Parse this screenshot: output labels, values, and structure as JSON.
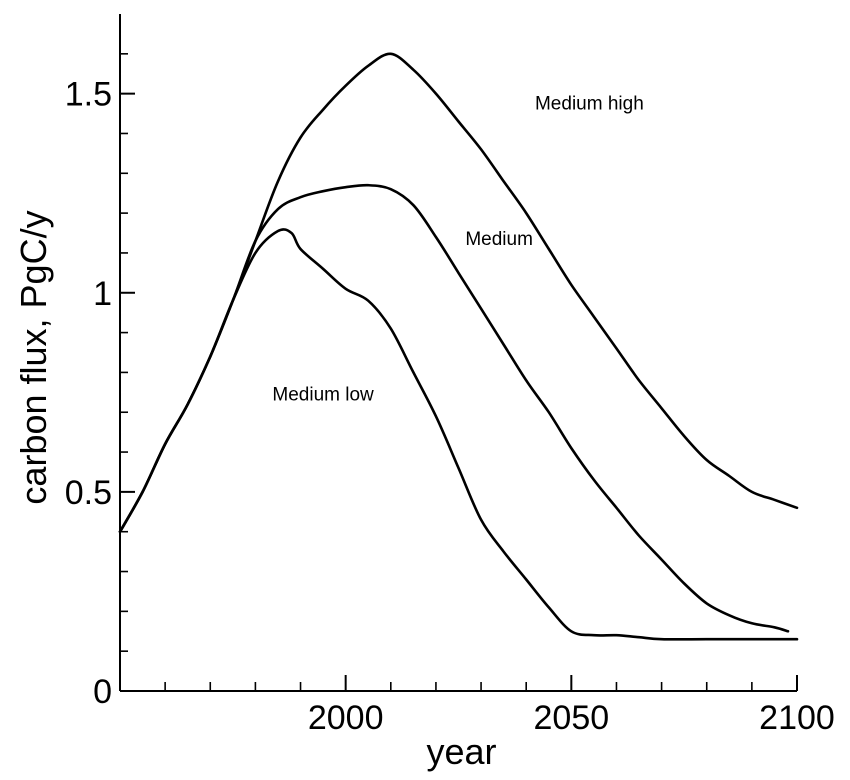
{
  "chart_data": {
    "type": "line",
    "title": "",
    "xlabel": "year",
    "ylabel": "carbon flux, PgC/y",
    "xlim": [
      1950,
      2100
    ],
    "ylim": [
      0,
      1.7
    ],
    "xticks": [
      2000,
      2050,
      2100
    ],
    "xtick_labels": [
      "2000",
      "2050",
      "2100"
    ],
    "yticks": [
      0,
      0.5,
      1,
      1.5
    ],
    "ytick_labels": [
      "0",
      "0.5",
      "1",
      "1.5"
    ],
    "grid": false,
    "legend": "none",
    "series": [
      {
        "name": "Medium high",
        "color": "#000000",
        "x": [
          1950,
          1955,
          1960,
          1965,
          1970,
          1975,
          1980,
          1985,
          1990,
          1995,
          2000,
          2005,
          2010,
          2015,
          2020,
          2025,
          2030,
          2035,
          2040,
          2045,
          2050,
          2055,
          2060,
          2065,
          2070,
          2075,
          2080,
          2085,
          2090,
          2095,
          2100
        ],
        "y": [
          0.4,
          0.5,
          0.62,
          0.72,
          0.84,
          0.98,
          1.13,
          1.28,
          1.39,
          1.46,
          1.52,
          1.57,
          1.6,
          1.56,
          1.5,
          1.43,
          1.36,
          1.28,
          1.2,
          1.11,
          1.02,
          0.94,
          0.86,
          0.78,
          0.71,
          0.64,
          0.58,
          0.54,
          0.5,
          0.48,
          0.46
        ]
      },
      {
        "name": "Medium",
        "color": "#000000",
        "x": [
          1950,
          1955,
          1960,
          1965,
          1970,
          1975,
          1980,
          1985,
          1990,
          1995,
          2000,
          2005,
          2010,
          2015,
          2020,
          2025,
          2030,
          2035,
          2040,
          2045,
          2050,
          2055,
          2060,
          2065,
          2070,
          2075,
          2080,
          2085,
          2090,
          2095,
          2098
        ],
        "y": [
          0.4,
          0.5,
          0.62,
          0.72,
          0.84,
          0.98,
          1.13,
          1.21,
          1.24,
          1.255,
          1.265,
          1.27,
          1.26,
          1.22,
          1.14,
          1.05,
          0.96,
          0.87,
          0.78,
          0.7,
          0.61,
          0.53,
          0.46,
          0.39,
          0.33,
          0.27,
          0.22,
          0.19,
          0.17,
          0.16,
          0.15
        ]
      },
      {
        "name": "Medium low",
        "color": "#000000",
        "x": [
          1950,
          1955,
          1960,
          1965,
          1970,
          1975,
          1980,
          1985,
          1988,
          1990,
          1995,
          2000,
          2005,
          2010,
          2015,
          2020,
          2025,
          2030,
          2035,
          2040,
          2045,
          2050,
          2055,
          2060,
          2065,
          2070,
          2080,
          2090,
          2100
        ],
        "y": [
          0.4,
          0.5,
          0.62,
          0.72,
          0.84,
          0.98,
          1.1,
          1.155,
          1.15,
          1.11,
          1.06,
          1.01,
          0.98,
          0.91,
          0.8,
          0.69,
          0.56,
          0.43,
          0.35,
          0.28,
          0.21,
          0.15,
          0.14,
          0.14,
          0.135,
          0.13,
          0.13,
          0.13,
          0.13
        ]
      }
    ],
    "annotations": [
      {
        "text": "Medium high",
        "x": 2054,
        "y": 1.46
      },
      {
        "text": "Medium",
        "x": 2034,
        "y": 1.12
      },
      {
        "text": "Medium low",
        "x": 1995,
        "y": 0.73
      }
    ]
  }
}
